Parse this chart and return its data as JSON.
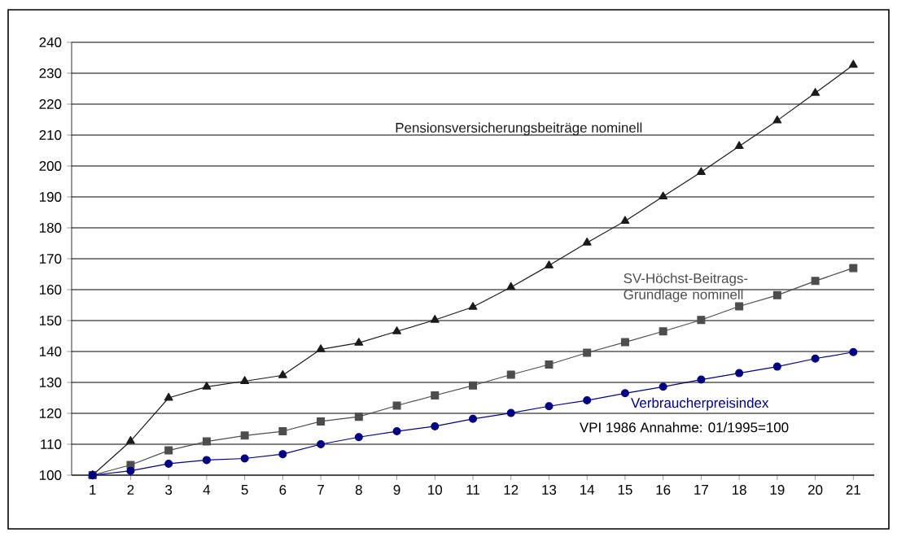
{
  "chart_data": {
    "type": "line",
    "categories": [
      "1",
      "2",
      "3",
      "4",
      "5",
      "6",
      "7",
      "8",
      "9",
      "10",
      "11",
      "12",
      "13",
      "14",
      "15",
      "16",
      "17",
      "18",
      "19",
      "20",
      "21"
    ],
    "series": [
      {
        "name": "Pensionsversicherungsbeiträge nominell",
        "color": "#1a1a1a",
        "marker": "triangle",
        "values": [
          100,
          111,
          125,
          128.6,
          130.4,
          132.3,
          140.7,
          142.8,
          146.5,
          150.2,
          154.4,
          160.8,
          167.8,
          175.2,
          182.2,
          190.1,
          198,
          206.4,
          214.7,
          223.6,
          232.7
        ]
      },
      {
        "name": "SV-Höchst-Beitrags-Grundlage nominell",
        "color": "#4d4d4d",
        "marker": "square",
        "values": [
          100,
          103.3,
          108,
          110.9,
          112.8,
          114.2,
          117.4,
          118.9,
          122.5,
          125.8,
          129,
          132.5,
          135.8,
          139.6,
          143,
          146.5,
          150.2,
          154.6,
          158.2,
          162.8,
          167
        ]
      },
      {
        "name": "Verbraucherpreisindex",
        "color": "#000080",
        "marker": "circle",
        "values": [
          100,
          101.4,
          103.7,
          104.9,
          105.4,
          106.8,
          110,
          112.3,
          114.2,
          115.8,
          118.2,
          120.1,
          122.3,
          124.2,
          126.5,
          128.6,
          130.9,
          133,
          135.1,
          137.7,
          139.8
        ]
      }
    ],
    "annotations": [
      "VPI 1986 Annahme: 01/1995=100"
    ],
    "ylim": [
      100,
      240
    ],
    "yticks": [
      100,
      110,
      120,
      130,
      140,
      150,
      160,
      170,
      180,
      190,
      200,
      210,
      220,
      230,
      240
    ],
    "grid": "y",
    "legend": false
  }
}
